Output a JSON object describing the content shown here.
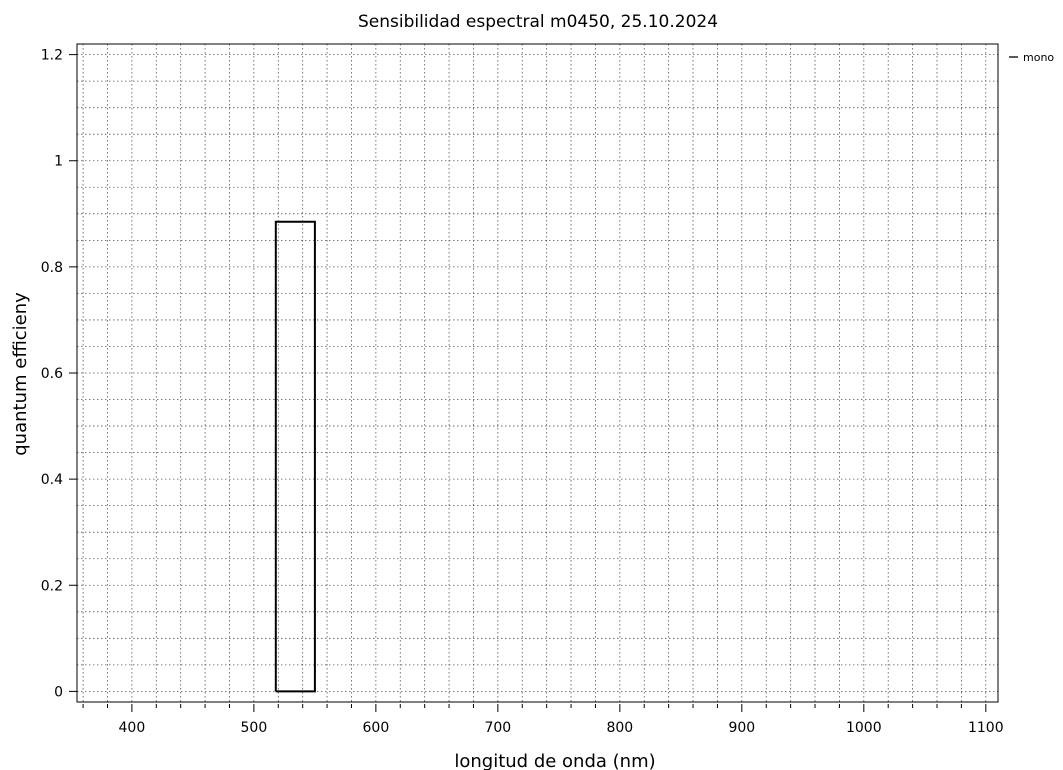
{
  "chart_data": {
    "type": "line",
    "title": "Sensibilidad espectral m0450, 25.10.2024",
    "xlabel": "longitud de onda (nm)",
    "ylabel": "quantum efficieny",
    "xlim": [
      355,
      1110
    ],
    "ylim": [
      -0.02,
      1.22
    ],
    "x_major_ticks": [
      400,
      500,
      600,
      700,
      800,
      900,
      1000,
      1100
    ],
    "x_tick_labels": [
      "400",
      "500",
      "600",
      "700",
      "800",
      "900",
      "1000",
      "1100"
    ],
    "y_major_ticks": [
      0,
      0.2,
      0.4,
      0.6,
      0.8,
      1.0,
      1.2
    ],
    "y_tick_labels": [
      "0",
      "0.2",
      "0.4",
      "0.6",
      "0.8",
      "1",
      "1.2"
    ],
    "x_grid_step": 20,
    "y_grid_step": 0.05,
    "grid": true,
    "legend_position": "top-right-outside",
    "series": [
      {
        "name": "mono",
        "color": "#000000",
        "x": [
          518,
          518,
          550,
          550,
          518
        ],
        "y": [
          0,
          0.885,
          0.885,
          0,
          0
        ]
      }
    ]
  }
}
